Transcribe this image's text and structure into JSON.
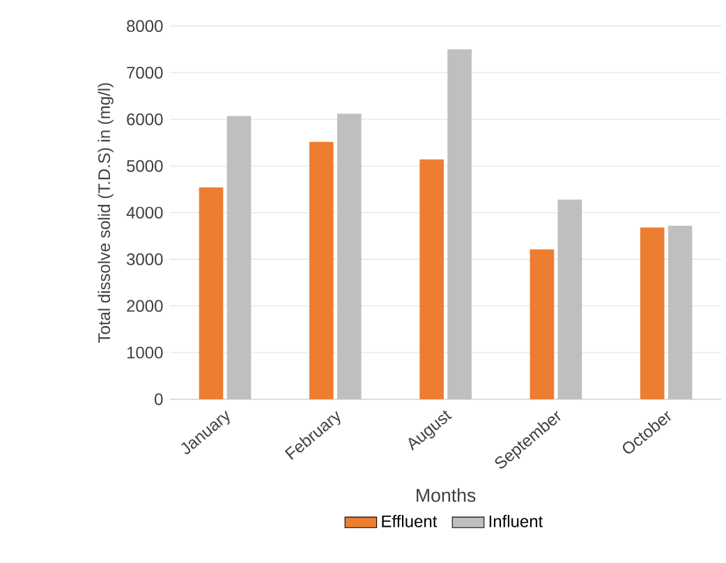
{
  "chart_data": {
    "type": "bar",
    "xlabel": "Months",
    "ylabel": "Total dissolve solid (T.D.S) in (mg/l)",
    "categories": [
      "January",
      "February",
      "August",
      "September",
      "October"
    ],
    "series": [
      {
        "name": "Effluent",
        "color": "#ed7d31",
        "values": [
          4540,
          5520,
          5140,
          3210,
          3680
        ]
      },
      {
        "name": "Influent",
        "color": "#bfbfbf",
        "values": [
          6070,
          6120,
          7500,
          4280,
          3720
        ]
      }
    ],
    "ylim": [
      0,
      8000
    ],
    "yticks": [
      0,
      1000,
      2000,
      3000,
      4000,
      5000,
      6000,
      7000,
      8000
    ],
    "grid": "y",
    "legend": "bottom"
  }
}
